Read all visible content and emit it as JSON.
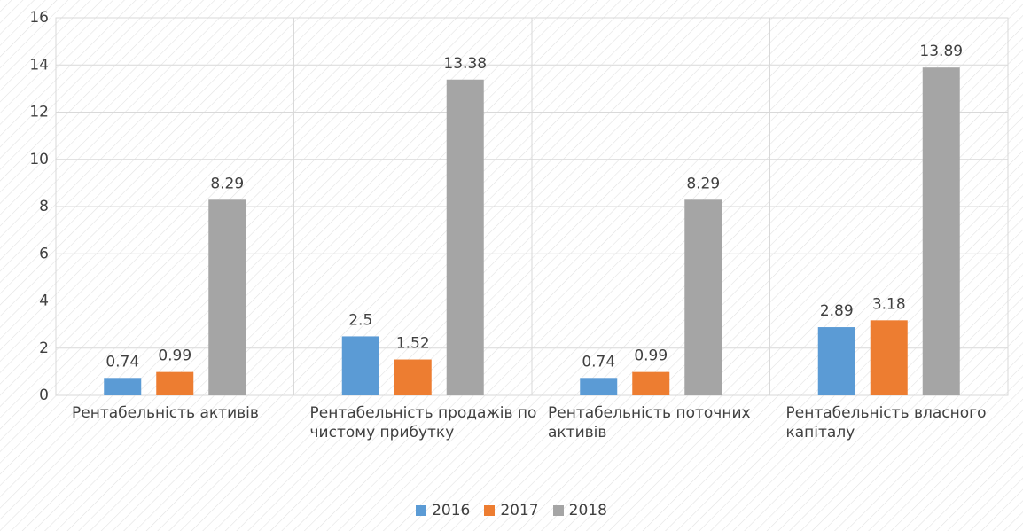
{
  "chart_data": {
    "type": "bar",
    "categories": [
      "Рентабельність активів",
      "Рентабельність продажів по чистому прибутку",
      "Рентабельність поточних активів",
      "Рентабельність власного капіталу"
    ],
    "series": [
      {
        "name": "2016",
        "color": "#5b9bd5",
        "values": [
          0.74,
          2.5,
          0.74,
          2.89
        ]
      },
      {
        "name": "2017",
        "color": "#ed7d31",
        "values": [
          0.99,
          1.52,
          0.99,
          3.18
        ]
      },
      {
        "name": "2018",
        "color": "#a5a5a5",
        "values": [
          8.29,
          13.38,
          8.29,
          13.89
        ]
      }
    ],
    "ylim": [
      0,
      16
    ],
    "yticks": [
      0,
      2,
      4,
      6,
      8,
      10,
      12,
      14,
      16
    ],
    "grid": true,
    "legend": "bottom"
  }
}
